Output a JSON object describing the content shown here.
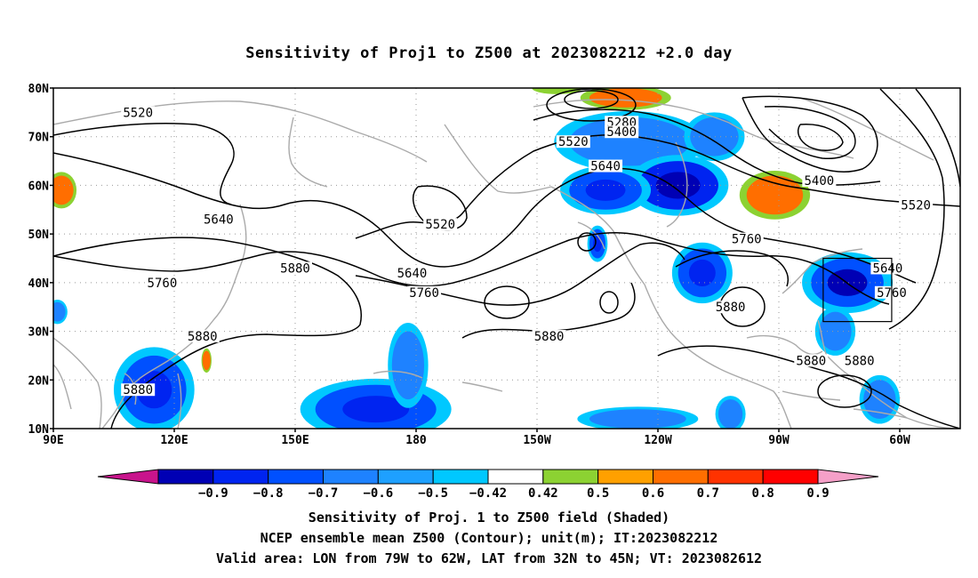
{
  "title": "Sensitivity of Proj1 to Z500 at 2023082212 +2.0 day",
  "lat_labels": [
    "80N",
    "70N",
    "60N",
    "50N",
    "40N",
    "30N",
    "20N",
    "10N"
  ],
  "lon_labels": [
    "90E",
    "120E",
    "150E",
    "180",
    "150W",
    "120W",
    "90W",
    "60W"
  ],
  "contour_labels": [
    {
      "text": "5520",
      "lon": 111,
      "lat": 75
    },
    {
      "text": "5640",
      "lon": 131,
      "lat": 53
    },
    {
      "text": "5760",
      "lon": 117,
      "lat": 40
    },
    {
      "text": "5880",
      "lon": 150,
      "lat": 43
    },
    {
      "text": "5880",
      "lon": 127,
      "lat": 29
    },
    {
      "text": "5880",
      "lon": 111,
      "lat": 18
    },
    {
      "text": "5520",
      "lon": 186,
      "lat": 52
    },
    {
      "text": "5640",
      "lon": 179,
      "lat": 42
    },
    {
      "text": "5760",
      "lon": 182,
      "lat": 38
    },
    {
      "text": "5880",
      "lon": 213,
      "lat": 29
    },
    {
      "text": "5280",
      "lon": 231,
      "lat": 73
    },
    {
      "text": "5400",
      "lon": 231,
      "lat": 71
    },
    {
      "text": "5520",
      "lon": 219,
      "lat": 69
    },
    {
      "text": "5640",
      "lon": 227,
      "lat": 64
    },
    {
      "text": "5760",
      "lon": 262,
      "lat": 49
    },
    {
      "text": "5880",
      "lon": 258,
      "lat": 35
    },
    {
      "text": "5400",
      "lon": 280,
      "lat": 61
    },
    {
      "text": "5520",
      "lon": 304,
      "lat": 56
    },
    {
      "text": "5640",
      "lon": 297,
      "lat": 43
    },
    {
      "text": "5760",
      "lon": 298,
      "lat": 38
    },
    {
      "text": "5880",
      "lon": 278,
      "lat": 24
    },
    {
      "text": "5880",
      "lon": 290,
      "lat": 24
    }
  ],
  "box": {
    "lon_min": 281,
    "lon_max": 298,
    "lat_min": 32,
    "lat_max": 45
  },
  "colorbar": {
    "labels": [
      "-0.9",
      "-0.8",
      "-0.7",
      "-0.6",
      "-0.5",
      "-0.42",
      "0.42",
      "0.5",
      "0.6",
      "0.7",
      "0.8",
      "0.9"
    ],
    "colors": [
      "#0000b4",
      "#0024f0",
      "#0050ff",
      "#1e82ff",
      "#1ea0ff",
      "#00c8ff",
      "#ffffff",
      "#8cd232",
      "#ffa000",
      "#ff6e00",
      "#ff3200",
      "#ff0000"
    ],
    "low_color": "#c8148c",
    "high_color": "#f5a0c8"
  },
  "footer": {
    "line1": "Sensitivity of Proj. 1 to Z500 field (Shaded)",
    "line2": "NCEP ensemble mean Z500 (Contour); unit(m); IT:2023082212",
    "line3": "Valid area: LON from 79W to 62W, LAT from 32N to 45N; VT: 2023082612"
  },
  "shaded_regions": [
    {
      "lon": 233,
      "lat": 69,
      "rx": 15,
      "ry": 5,
      "value": -0.55
    },
    {
      "lon": 245,
      "lat": 60,
      "rx": 10,
      "ry": 5,
      "value": -0.75
    },
    {
      "lon": 227,
      "lat": 59,
      "rx": 9,
      "ry": 4,
      "value": -0.6
    },
    {
      "lon": 254,
      "lat": 70,
      "rx": 6,
      "ry": 4,
      "value": -0.5
    },
    {
      "lon": 232,
      "lat": 78,
      "rx": 9,
      "ry": 2,
      "value": 0.6
    },
    {
      "lon": 215,
      "lat": 80,
      "rx": 5,
      "ry": 1,
      "value": 0.45
    },
    {
      "lon": 269,
      "lat": 58,
      "rx": 7,
      "ry": 4,
      "value": 0.6
    },
    {
      "lon": 92,
      "lat": 59,
      "rx": 3,
      "ry": 3,
      "value": 0.6
    },
    {
      "lon": 128,
      "lat": 24,
      "rx": 1,
      "ry": 2,
      "value": 0.6
    },
    {
      "lon": 251,
      "lat": 42,
      "rx": 6,
      "ry": 5,
      "value": -0.6
    },
    {
      "lon": 287,
      "lat": 40,
      "rx": 9,
      "ry": 5,
      "value": -0.65
    },
    {
      "lon": 284,
      "lat": 30,
      "rx": 4,
      "ry": 4,
      "value": -0.55
    },
    {
      "lon": 225,
      "lat": 48,
      "rx": 2,
      "ry": 3,
      "value": -0.6
    },
    {
      "lon": 115,
      "lat": 18,
      "rx": 8,
      "ry": 7,
      "value": -0.6
    },
    {
      "lon": 170,
      "lat": 14,
      "rx": 15,
      "ry": 5,
      "value": -0.6
    },
    {
      "lon": 178,
      "lat": 23,
      "rx": 4,
      "ry": 7,
      "value": -0.5
    },
    {
      "lon": 295,
      "lat": 16,
      "rx": 4,
      "ry": 4,
      "value": -0.5
    },
    {
      "lon": 235,
      "lat": 12,
      "rx": 12,
      "ry": 2,
      "value": -0.5
    },
    {
      "lon": 91,
      "lat": 34,
      "rx": 2,
      "ry": 2,
      "value": -0.5
    },
    {
      "lon": 258,
      "lat": 13,
      "rx": 3,
      "ry": 3,
      "value": -0.55
    }
  ]
}
